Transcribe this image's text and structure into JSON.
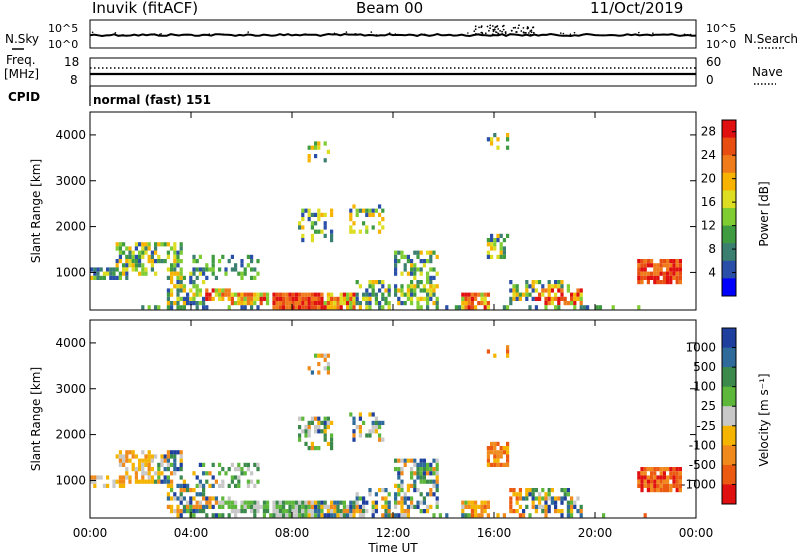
{
  "header": {
    "station": "Inuvik (fitACF)",
    "beam": "Beam 00",
    "date": "11/Oct/2019"
  },
  "noise_panel": {
    "left_label": "N.Sky",
    "right_label": "N.Search",
    "tick_top": "10^5",
    "tick_bottom": "10^0"
  },
  "freq_panel": {
    "left_label_1": "Freq.",
    "left_label_2": "[MHz]",
    "right_label": "Nave",
    "left_ticks": [
      "18",
      "8"
    ],
    "right_ticks": [
      "60",
      "0"
    ]
  },
  "cpid_panel": {
    "label": "CPID",
    "mode": "normal (fast) 151"
  },
  "chart_data": [
    {
      "type": "heatmap",
      "name": "power",
      "ylabel": "Slant Range [km]",
      "xlabel": "",
      "x_ticks": [
        "00:00",
        "04:00",
        "08:00",
        "12:00",
        "16:00",
        "20:00",
        "00:00"
      ],
      "y_ticks": [
        "1000",
        "2000",
        "3000",
        "4000"
      ],
      "ylim": [
        180,
        4500
      ],
      "xlim_hours": [
        0,
        24
      ],
      "colorbar": {
        "label": "Power [dB]",
        "ticks": [
          "4",
          "8",
          "12",
          "16",
          "20",
          "24",
          "28"
        ],
        "range": [
          0,
          30
        ],
        "colors": [
          "#0000ff",
          "#2a4fa8",
          "#3a7f6f",
          "#3f9b3f",
          "#7fcc33",
          "#dddd22",
          "#f7b300",
          "#f07b1a",
          "#e84d12",
          "#e01010"
        ]
      }
    },
    {
      "type": "heatmap",
      "name": "velocity",
      "ylabel": "Slant Range [km]",
      "xlabel": "Time UT",
      "x_ticks": [
        "00:00",
        "04:00",
        "08:00",
        "12:00",
        "16:00",
        "20:00",
        "00:00"
      ],
      "y_ticks": [
        "1000",
        "2000",
        "3000",
        "4000"
      ],
      "ylim": [
        180,
        4500
      ],
      "xlim_hours": [
        0,
        24
      ],
      "colorbar": {
        "label": "Velocity [m s⁻¹]",
        "ticks": [
          "1000",
          "500",
          "100",
          "25",
          "-25",
          "-100",
          "-500",
          "-1000"
        ],
        "colors": [
          "#1f3f9f",
          "#2e6a9a",
          "#3b8a4c",
          "#5cb73b",
          "#c8c8c8",
          "#f5b400",
          "#f08a1c",
          "#ec5a12",
          "#e01010"
        ]
      }
    }
  ]
}
